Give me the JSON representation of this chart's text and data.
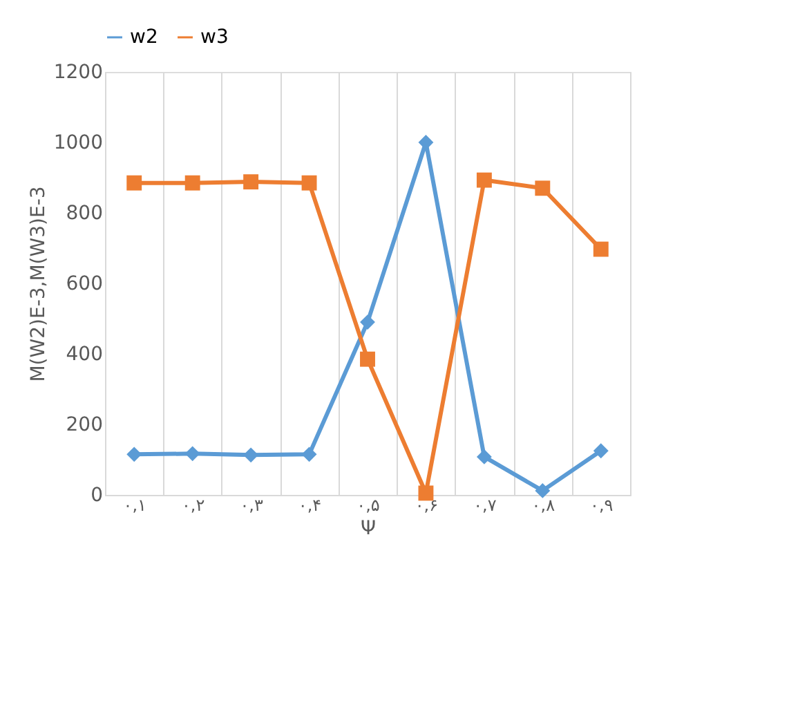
{
  "chart_data": {
    "type": "line",
    "xlabel": "Ψ",
    "ylabel": "M(W2)E-3,M(W3)E-3",
    "categories": [
      "۰,۱",
      "۰,۲",
      "۰,۳",
      "۰,۴",
      "۰,۵",
      "۰,۶",
      "۰,۷",
      "۰,۸",
      "۰,۹"
    ],
    "series": [
      {
        "name": "w2",
        "color": "#5b9bd5",
        "marker": "diamond",
        "values": [
          115,
          117,
          113,
          115,
          490,
          1000,
          108,
          12,
          125
        ]
      },
      {
        "name": "w3",
        "color": "#ed7d31",
        "marker": "square",
        "values": [
          885,
          885,
          888,
          885,
          385,
          5,
          893,
          870,
          697
        ]
      }
    ],
    "ylim": [
      0,
      1200
    ],
    "yticks": [
      0,
      200,
      400,
      600,
      800,
      1000,
      1200
    ],
    "grid": "x",
    "legend": "top",
    "line_style": "solid"
  }
}
